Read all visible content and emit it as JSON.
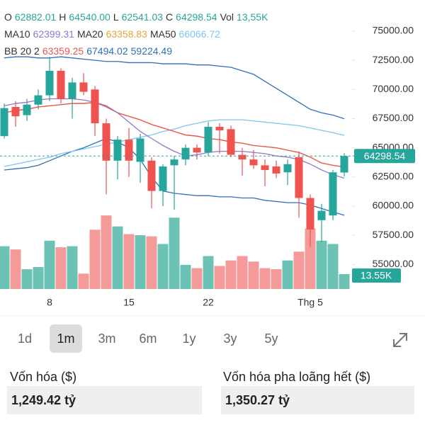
{
  "chart_data": {
    "type": "candlestick",
    "header": [
      [
        {
          "text": "O",
          "color": "#333333"
        },
        {
          "text": "62882.01",
          "color": "#26a69a"
        },
        {
          "text": "H",
          "color": "#333333"
        },
        {
          "text": "64540.00",
          "color": "#26a69a"
        },
        {
          "text": "L",
          "color": "#333333"
        },
        {
          "text": "62541.03",
          "color": "#26a69a"
        },
        {
          "text": "C",
          "color": "#333333"
        },
        {
          "text": "64298.54",
          "color": "#26a69a"
        },
        {
          "text": "Vol",
          "color": "#333333"
        },
        {
          "text": "13,55K",
          "color": "#26a69a"
        }
      ],
      [
        {
          "text": "MA10",
          "color": "#333333"
        },
        {
          "text": "62399.31",
          "color": "#9575cd"
        },
        {
          "text": "MA20",
          "color": "#333333"
        },
        {
          "text": "63358.83",
          "color": "#e6a23c"
        },
        {
          "text": "MA50",
          "color": "#333333"
        },
        {
          "text": "66066.72",
          "color": "#7cc7f0"
        }
      ],
      [
        {
          "text": "BB 20 2",
          "color": "#333333"
        },
        {
          "text": "63359.25",
          "color": "#ef5350"
        },
        {
          "text": "67494.02",
          "color": "#2f6fb5"
        },
        {
          "text": "59224.49",
          "color": "#2f6fb5"
        }
      ]
    ],
    "categories": [
      null,
      null,
      null,
      null,
      "8",
      null,
      null,
      null,
      null,
      null,
      null,
      "15",
      null,
      null,
      null,
      null,
      null,
      null,
      "22",
      null,
      null,
      null,
      null,
      null,
      null,
      null,
      null,
      "Thg 5",
      null,
      null,
      null
    ],
    "open": [
      66000,
      68500,
      67800,
      68700,
      69500,
      71600,
      69200,
      70600,
      70000,
      67100,
      63900,
      65700,
      63800,
      63900,
      61300,
      63500,
      64000,
      65000,
      64600,
      66800,
      66600,
      64400,
      64000,
      63500,
      63400,
      62900,
      64200,
      60700,
      58800,
      59200,
      62882.01
    ],
    "high": [
      68800,
      69000,
      69200,
      70000,
      72800,
      71800,
      71000,
      71400,
      70300,
      67500,
      66000,
      66700,
      66200,
      64200,
      63600,
      64300,
      65300,
      65300,
      67200,
      67100,
      66900,
      65000,
      64800,
      64000,
      63900,
      64000,
      64700,
      61000,
      60200,
      63100,
      64540
    ],
    "low": [
      65800,
      66800,
      67300,
      68300,
      69000,
      68800,
      67500,
      69500,
      66000,
      61000,
      62300,
      62500,
      62000,
      59800,
      60000,
      59700,
      63500,
      64000,
      64300,
      64500,
      64200,
      62600,
      63200,
      61700,
      62400,
      61800,
      59000,
      56500,
      56900,
      58800,
      62541.03
    ],
    "close": [
      68400,
      67700,
      68700,
      69500,
      71600,
      69200,
      70600,
      69800,
      67100,
      63900,
      65700,
      63900,
      65800,
      61300,
      63400,
      64000,
      65000,
      64600,
      66800,
      66500,
      64400,
      64000,
      63500,
      63100,
      62800,
      63600,
      60700,
      58000,
      59600,
      62900,
      64298.54
    ],
    "volume": [
      39,
      36,
      18,
      20,
      44,
      38,
      39,
      14,
      54,
      67,
      57,
      50,
      49,
      48,
      41,
      65,
      22,
      19,
      30,
      21,
      26,
      30,
      25,
      19,
      18,
      26,
      34,
      55,
      44,
      41,
      13.55
    ],
    "volume_ylim": [
      0,
      100
    ],
    "volume_badge": "13.55K",
    "up_color": "#26a69a",
    "down_color": "#ef5350",
    "up_volume_color": "#6cc3b5",
    "down_volume_color": "#f49a98",
    "lines": [
      {
        "color": "#2f6fb5",
        "values": [
          72700,
          72800,
          72800,
          72700,
          72700,
          72800,
          72700,
          72600,
          72500,
          72400,
          72400,
          72300,
          72300,
          72300,
          72200,
          72200,
          72200,
          72100,
          72100,
          72000,
          71900,
          71600,
          71300,
          70700,
          70100,
          69500,
          68900,
          68300,
          68000,
          67800,
          67494.02
        ]
      },
      {
        "color": "#2f6fb5",
        "values": [
          63100,
          63200,
          63300,
          63500,
          63900,
          64300,
          64700,
          65000,
          65400,
          65800,
          65500,
          65000,
          64000,
          62500,
          61300,
          61100,
          61000,
          60900,
          60900,
          60800,
          60800,
          60700,
          60700,
          60500,
          60400,
          60300,
          60300,
          60100,
          59800,
          59500,
          59224.49
        ]
      },
      {
        "color": "#7cc7f0",
        "values": [
          63400,
          63600,
          63800,
          64000,
          64200,
          64500,
          64700,
          64900,
          65100,
          65300,
          65500,
          65700,
          65900,
          66100,
          66400,
          66600,
          66900,
          67100,
          67300,
          67400,
          67400,
          67400,
          67300,
          67200,
          67100,
          67000,
          66900,
          66700,
          66500,
          66300,
          66066.72
        ]
      },
      {
        "color": "#e6a23c",
        "values": [
          68000,
          68200,
          68300,
          68500,
          68600,
          68700,
          68800,
          68800,
          68900,
          68600,
          68000,
          67700,
          67400,
          67000,
          66700,
          66400,
          66100,
          66000,
          65800,
          65700,
          65500,
          65400,
          65200,
          65100,
          65000,
          64800,
          64600,
          64200,
          63700,
          63500,
          63358.83
        ]
      },
      {
        "color": "#ef5350",
        "values": [
          68000,
          68200,
          68300,
          68500,
          68600,
          68700,
          68800,
          68800,
          68900,
          68600,
          68000,
          67700,
          67400,
          67000,
          66700,
          66400,
          66100,
          66000,
          65800,
          65700,
          65500,
          65400,
          65200,
          65100,
          65000,
          64800,
          64600,
          64200,
          63700,
          63500,
          63359.25
        ]
      },
      {
        "color": "#9575cd",
        "values": [
          68600,
          68800,
          68900,
          69100,
          69200,
          69200,
          69200,
          69100,
          68900,
          68500,
          68000,
          67200,
          66400,
          65800,
          65200,
          64700,
          64300,
          64400,
          64600,
          64700,
          64700,
          64700,
          64600,
          64500,
          64300,
          64200,
          64000,
          63600,
          63100,
          62700,
          62399.31
        ]
      }
    ],
    "ylim": [
      52900,
      77060
    ],
    "yticks": [
      {
        "value": 55000,
        "label": "55000.00"
      },
      {
        "value": 57500,
        "label": "57500.00"
      },
      {
        "value": 60000,
        "label": "60000.00"
      },
      {
        "value": 62500,
        "label": "62500.00"
      },
      {
        "value": 65000,
        "label": "65000.00"
      },
      {
        "value": 67500,
        "label": "67500.00"
      },
      {
        "value": 70000,
        "label": "70000.00"
      },
      {
        "value": 72500,
        "label": "72500.00"
      },
      {
        "value": 75000,
        "label": "75000.00"
      }
    ]
  },
  "periods": {
    "options": [
      "1d",
      "1m",
      "3m",
      "6m",
      "1y",
      "3y",
      "5y"
    ],
    "selected": 1
  },
  "stats": [
    {
      "label": "Vốn hóa ($)",
      "value": "1,249.42 tỷ"
    },
    {
      "label": "Vốn hóa pha loãng hết ($)",
      "value": "1,350.27 tỷ"
    }
  ]
}
